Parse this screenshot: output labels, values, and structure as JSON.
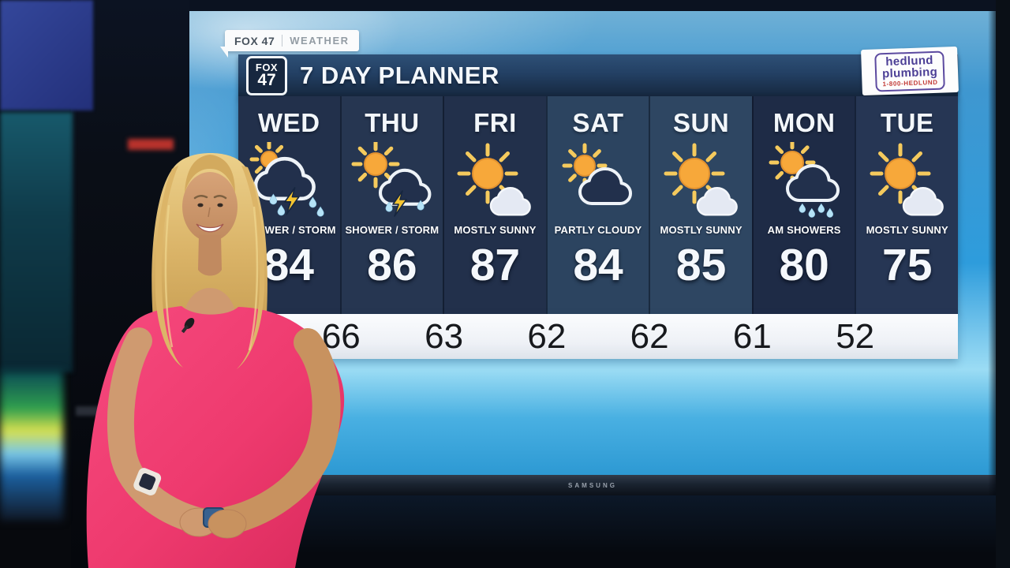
{
  "bug": {
    "station": "FOX 47",
    "section": "WEATHER"
  },
  "header": {
    "logo_top": "FOX",
    "logo_number": "47",
    "title": "7 DAY PLANNER"
  },
  "sponsor": {
    "name_line1": "hedlund",
    "name_line2": "plumbing",
    "phone": "1-800-HEDLUND"
  },
  "screen": {
    "brand": "SAMSUNG"
  },
  "colors": {
    "sky_blue": "#2e9cdc",
    "panel_navy": "#22304b",
    "panel_navy_light": "#2d4560",
    "header_navy": "#234064",
    "dress_pink": "#ef3a6f",
    "sun_orange": "#f7a83a",
    "ray_yellow": "#f5ca5d",
    "drop_blue": "#b5e2f6",
    "bolt_yellow": "#f5c531",
    "low_strip_white": "#eef1f6"
  },
  "chart_data": {
    "type": "table",
    "title": "7 DAY PLANNER",
    "days": [
      {
        "day": "WED",
        "condition": "SHOWER / STORM",
        "high": "84",
        "icon": "sun-cloud-storm"
      },
      {
        "day": "THU",
        "condition": "SHOWER / STORM",
        "high": "86",
        "icon": "sun-storm"
      },
      {
        "day": "FRI",
        "condition": "MOSTLY SUNNY",
        "high": "87",
        "icon": "mostly-sunny"
      },
      {
        "day": "SAT",
        "condition": "PARTLY CLOUDY",
        "high": "84",
        "icon": "partly-cloudy"
      },
      {
        "day": "SUN",
        "condition": "MOSTLY SUNNY",
        "high": "85",
        "icon": "mostly-sunny"
      },
      {
        "day": "MON",
        "condition": "AM SHOWERS",
        "high": "80",
        "icon": "am-showers"
      },
      {
        "day": "TUE",
        "condition": "MOSTLY SUNNY",
        "high": "75",
        "icon": "mostly-sunny"
      }
    ],
    "column_colors": [
      "#22304b",
      "#263651",
      "#22304b",
      "#2c4460",
      "#2e4662",
      "#1e2b46",
      "#263654"
    ],
    "overnight_lows": [
      "66",
      "63",
      "62",
      "62",
      "61",
      "52"
    ]
  }
}
